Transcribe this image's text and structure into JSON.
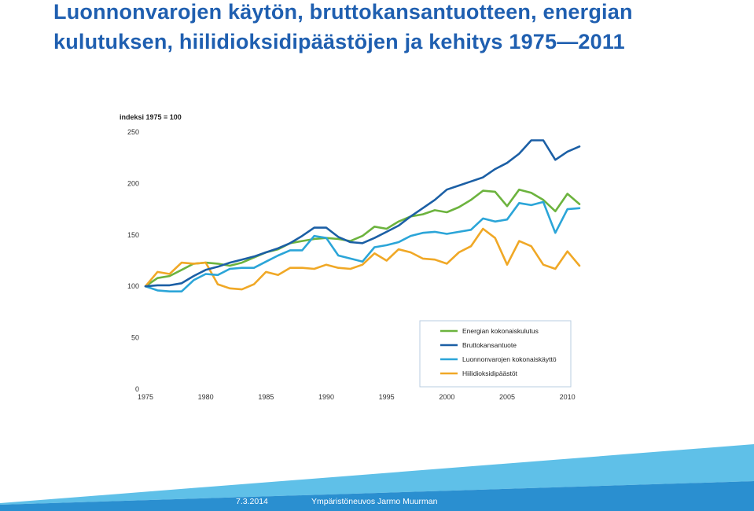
{
  "slide": {
    "title_line1": "Luonnonvarojen käytön, bruttokansantuotteen, energian",
    "title_line2": "kulutuksen, hiilidioksidipäästöjen ja kehitys 1975—2011"
  },
  "footer": {
    "date": "7.3.2014",
    "organization": "Ympäristöneuvos Jarmo Muurman"
  },
  "chart_data": {
    "type": "line",
    "title": "",
    "ylabel": "indeksi 1975 = 100",
    "xlabel": "",
    "xlim": [
      1975,
      2011
    ],
    "ylim": [
      0,
      250
    ],
    "x_ticks": [
      1975,
      1980,
      1985,
      1990,
      1995,
      2000,
      2005,
      2010
    ],
    "y_ticks": [
      0,
      50,
      100,
      150,
      200,
      250
    ],
    "grid": false,
    "legend_position": "bottom-right",
    "x": [
      1975,
      1976,
      1977,
      1978,
      1979,
      1980,
      1981,
      1982,
      1983,
      1984,
      1985,
      1986,
      1987,
      1988,
      1989,
      1990,
      1991,
      1992,
      1993,
      1994,
      1995,
      1996,
      1997,
      1998,
      1999,
      2000,
      2001,
      2002,
      2003,
      2004,
      2005,
      2006,
      2007,
      2008,
      2009,
      2010,
      2011
    ],
    "series": [
      {
        "name": "Energian kokonaiskulutus",
        "color": "#6cb33e",
        "values": [
          100,
          108,
          110,
          116,
          122,
          123,
          122,
          120,
          123,
          128,
          133,
          136,
          142,
          144,
          146,
          147,
          146,
          144,
          149,
          158,
          156,
          163,
          168,
          170,
          174,
          172,
          177,
          184,
          193,
          192,
          178,
          194,
          191,
          184,
          173,
          190,
          180
        ]
      },
      {
        "name": "Bruttokansantuote",
        "color": "#1b5fa5",
        "values": [
          100,
          101,
          101,
          103,
          110,
          116,
          119,
          123,
          126,
          129,
          133,
          137,
          142,
          149,
          157,
          157,
          148,
          143,
          142,
          147,
          153,
          159,
          168,
          176,
          184,
          194,
          198,
          202,
          206,
          214,
          220,
          229,
          242,
          242,
          223,
          231,
          236
        ]
      },
      {
        "name": "Luonnonvarojen kokonaiskäyttö",
        "color": "#2ba5d8",
        "values": [
          100,
          96,
          95,
          95,
          106,
          112,
          111,
          117,
          118,
          118,
          124,
          130,
          135,
          135,
          149,
          147,
          130,
          127,
          124,
          138,
          140,
          143,
          149,
          152,
          153,
          151,
          153,
          155,
          166,
          163,
          165,
          181,
          179,
          182,
          152,
          175,
          176
        ]
      },
      {
        "name": "Hiilidioksidipäästöt",
        "color": "#f0a826",
        "values": [
          100,
          114,
          112,
          123,
          122,
          123,
          102,
          98,
          97,
          102,
          114,
          111,
          118,
          118,
          117,
          121,
          118,
          117,
          121,
          132,
          125,
          136,
          133,
          127,
          126,
          122,
          133,
          139,
          156,
          147,
          121,
          144,
          139,
          121,
          117,
          134,
          120
        ]
      }
    ]
  },
  "colors": {
    "title": "#1f5fb0",
    "footer_band": "#2a8fd0"
  }
}
